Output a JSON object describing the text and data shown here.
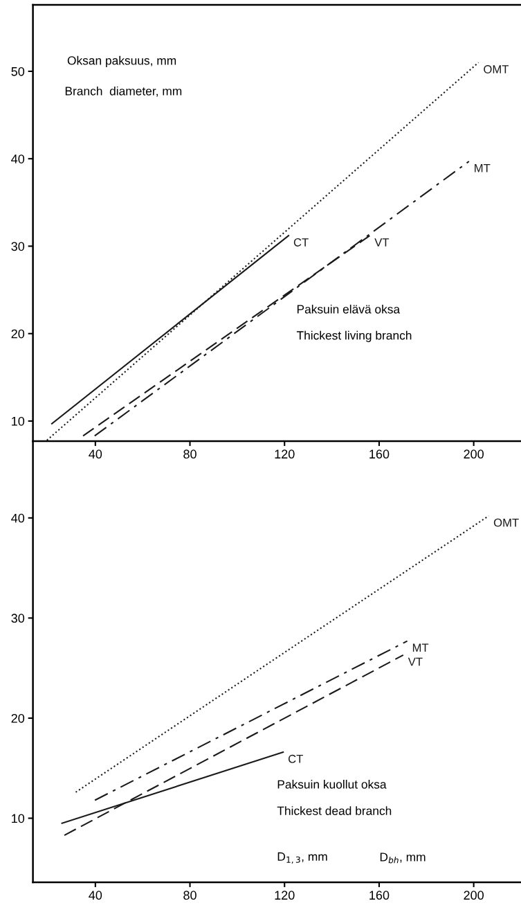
{
  "chart_data": [
    {
      "type": "line",
      "xlim": [
        13.6,
        220
      ],
      "ylim": [
        7.7,
        57.6
      ],
      "xticks": [
        40,
        80,
        120,
        160,
        200
      ],
      "yticks": [
        10,
        20,
        30,
        40,
        50
      ],
      "grid": false,
      "legend": false,
      "marker": "none",
      "annotations": [
        "Oksan paksuus, mm",
        "Branch  diameter, mm",
        "Paksuin elävä oksa",
        "Thickest living branch"
      ],
      "series": [
        {
          "name": "CT",
          "color": "#1a1a1a",
          "line_style": "solid",
          "x": [
            21.6,
            121.7
          ],
          "values": [
            9.7,
            31.2
          ]
        },
        {
          "name": "OMT",
          "color": "#1a1a1a",
          "line_style": "dotted",
          "x": [
            19.5,
            202
          ],
          "values": [
            7.8,
            51.0
          ]
        },
        {
          "name": "VT",
          "color": "#1a1a1a",
          "line_style": "dashed",
          "x": [
            34.8,
            156
          ],
          "values": [
            8.3,
            31.2
          ]
        },
        {
          "name": "MT",
          "color": "#1a1a1a",
          "line_style": "dashdot",
          "x": [
            39.7,
            198
          ],
          "values": [
            8.3,
            39.7
          ]
        }
      ]
    },
    {
      "type": "line",
      "xlim": [
        13.6,
        220
      ],
      "ylim": [
        3.6,
        47.6
      ],
      "xticks": [
        40,
        80,
        120,
        160,
        200
      ],
      "yticks": [
        10,
        20,
        30,
        40
      ],
      "grid": false,
      "legend": false,
      "marker": "none",
      "annotations": [
        "Paksuin kuollut oksa",
        "Thickest dead branch",
        "D$_{1,3}$, mm",
        "D$_{bh}$, mm"
      ],
      "series": [
        {
          "name": "OMT",
          "color": "#1a1a1a",
          "line_style": "dotted",
          "x": [
            31.7,
            206.3
          ],
          "values": [
            12.6,
            40.2
          ]
        },
        {
          "name": "MT",
          "color": "#1a1a1a",
          "line_style": "dashdot",
          "x": [
            39.8,
            171.9
          ],
          "values": [
            11.8,
            27.7
          ]
        },
        {
          "name": "VT",
          "color": "#1a1a1a",
          "line_style": "dashed",
          "x": [
            26.9,
            170.2
          ],
          "values": [
            8.3,
            26.3
          ]
        },
        {
          "name": "CT",
          "color": "#1a1a1a",
          "line_style": "solid",
          "x": [
            25.9,
            119.4
          ],
          "values": [
            9.5,
            16.6
          ]
        }
      ]
    }
  ]
}
